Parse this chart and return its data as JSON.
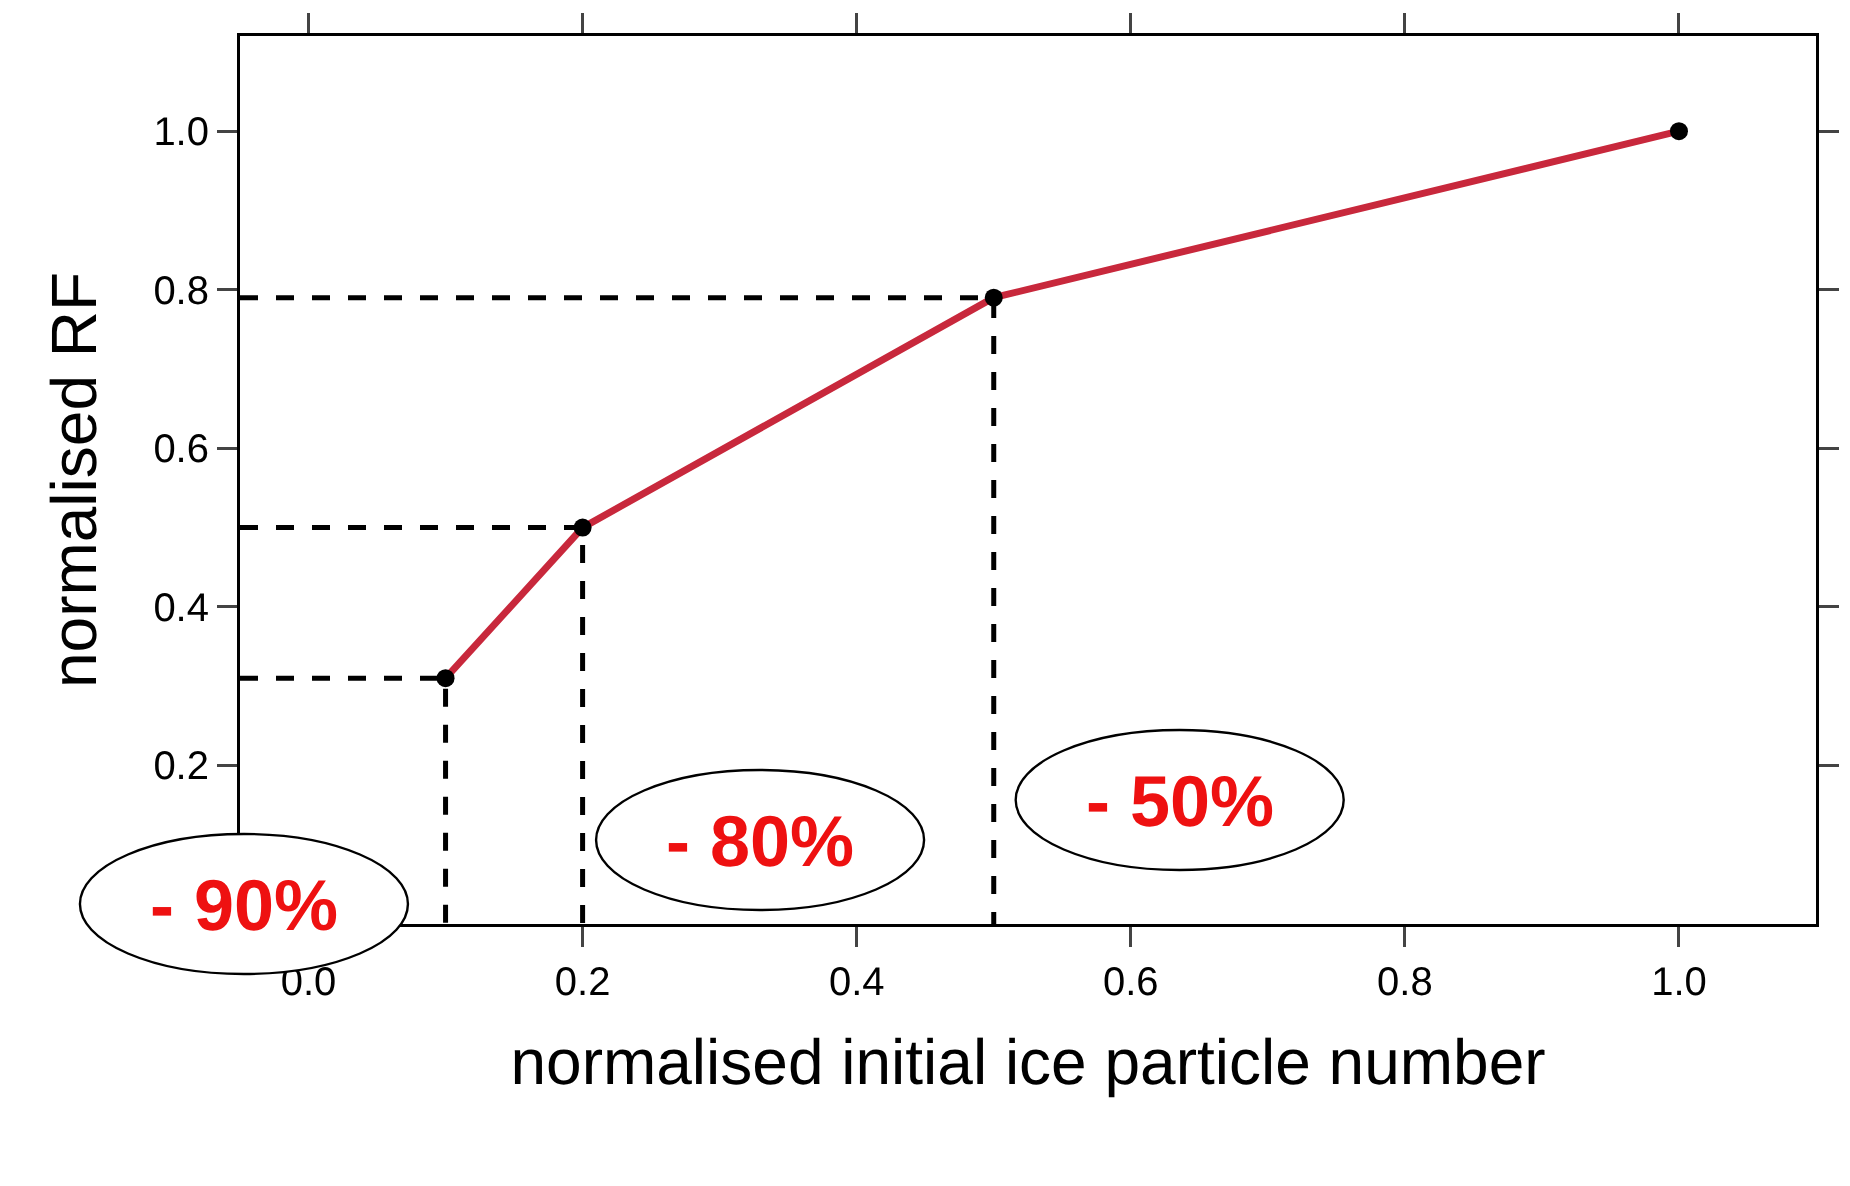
{
  "chart_data": {
    "type": "line",
    "xlabel": "normalised initial ice particle number",
    "ylabel": "normalised RF",
    "xlim": [
      -0.05,
      1.1
    ],
    "ylim": [
      0.0,
      1.12
    ],
    "xticks": [
      {
        "value": 0,
        "label": "0.0"
      },
      {
        "value": 0.2,
        "label": "0.2"
      },
      {
        "value": 0.4,
        "label": "0.4"
      },
      {
        "value": 0.6,
        "label": "0.6"
      },
      {
        "value": 0.8,
        "label": "0.8"
      },
      {
        "value": 1,
        "label": "1.0"
      }
    ],
    "yticks": [
      {
        "value": 0.2,
        "label": "0.2"
      },
      {
        "value": 0.4,
        "label": "0.4"
      },
      {
        "value": 0.6,
        "label": "0.6"
      },
      {
        "value": 0.8,
        "label": "0.8"
      },
      {
        "value": 1,
        "label": "1.0"
      }
    ],
    "grid": false,
    "series": [
      {
        "color": "#c8283c",
        "marker": "none",
        "line_style": "solid",
        "x": [
          0.1,
          0.2,
          0.5,
          1.0
        ],
        "values": [
          0.31,
          0.5,
          0.79,
          1.0
        ]
      },
      {
        "type": "scatter",
        "color": "#000000",
        "marker": "circle",
        "x": [
          0.1,
          0.2,
          0.5,
          1.0
        ],
        "values": [
          0.31,
          0.5,
          0.79,
          1.0
        ]
      },
      {
        "type": "line",
        "color": "#000000",
        "marker": "none",
        "line_style": "dashed",
        "x": [
          -0.05,
          0.1,
          0.1
        ],
        "values": [
          0.31,
          0.31,
          0.0
        ]
      },
      {
        "type": "line",
        "color": "#000000",
        "marker": "none",
        "line_style": "dashed",
        "x": [
          -0.05,
          0.2,
          0.2
        ],
        "values": [
          0.5,
          0.5,
          0.0
        ]
      },
      {
        "type": "line",
        "color": "#000000",
        "marker": "none",
        "line_style": "dashed",
        "x": [
          -0.05,
          0.5,
          0.5
        ],
        "values": [
          0.79,
          0.79,
          0.0
        ]
      }
    ],
    "annotations": [
      "- 90%",
      "- 80%",
      "- 50%"
    ]
  }
}
